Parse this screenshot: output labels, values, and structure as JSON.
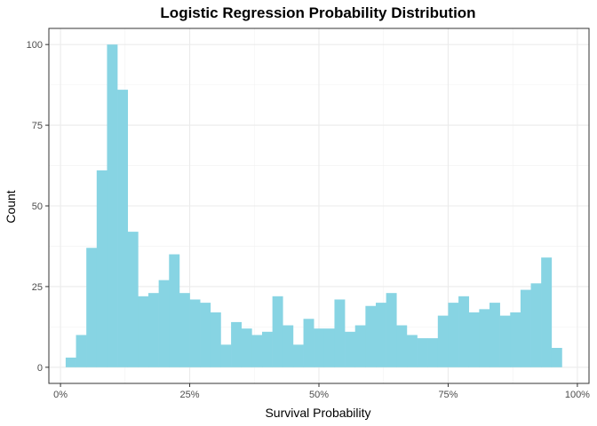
{
  "chart_data": {
    "type": "bar",
    "title": "Logistic Regression Probability Distribution",
    "xlabel": "Survival Probability",
    "ylabel": "Count",
    "bar_color": "#87D4E3",
    "grid": true,
    "xlim": [
      -0.0225,
      1.0225
    ],
    "ylim": [
      -5,
      105
    ],
    "x_ticks": [
      0,
      0.25,
      0.5,
      0.75,
      1.0
    ],
    "x_tick_labels": [
      "0%",
      "25%",
      "50%",
      "75%",
      "100%"
    ],
    "y_ticks": [
      0,
      25,
      50,
      75,
      100
    ],
    "y_tick_labels": [
      "0",
      "25",
      "50",
      "75",
      "100"
    ],
    "bin_width": 0.02,
    "bin_starts": [
      0.01,
      0.03,
      0.05,
      0.07,
      0.09,
      0.11,
      0.13,
      0.15,
      0.17,
      0.19,
      0.21,
      0.23,
      0.25,
      0.27,
      0.29,
      0.31,
      0.33,
      0.35,
      0.37,
      0.39,
      0.41,
      0.43,
      0.45,
      0.47,
      0.49,
      0.51,
      0.53,
      0.55,
      0.57,
      0.59,
      0.61,
      0.63,
      0.65,
      0.67,
      0.69,
      0.71,
      0.73,
      0.75,
      0.77,
      0.79,
      0.81,
      0.83,
      0.85,
      0.87,
      0.89,
      0.91,
      0.93,
      0.95
    ],
    "counts": [
      3,
      10,
      37,
      61,
      100,
      86,
      42,
      22,
      23,
      27,
      35,
      23,
      21,
      20,
      17,
      7,
      14,
      12,
      10,
      11,
      22,
      13,
      7,
      15,
      12,
      12,
      21,
      11,
      13,
      19,
      20,
      23,
      13,
      10,
      9,
      9,
      16,
      20,
      22,
      17,
      18,
      20,
      16,
      17,
      24,
      26,
      34,
      6
    ]
  }
}
